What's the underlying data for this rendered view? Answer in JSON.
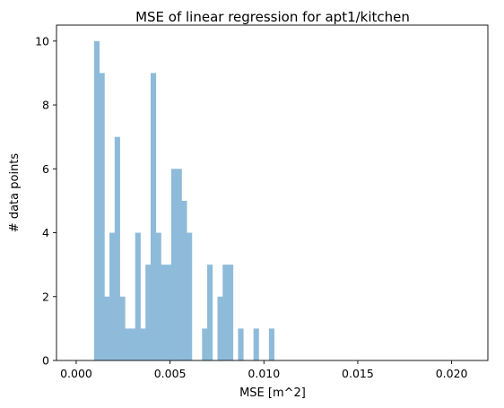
{
  "chart_data": {
    "type": "histogram",
    "title": "MSE of linear regression for apt1/kitchen",
    "xlabel": "MSE [m^2]",
    "ylabel": "# data points",
    "xlim": [
      -0.00105,
      0.02193
    ],
    "ylim": [
      0,
      10.5
    ],
    "x_ticks": [
      "0.000",
      "0.005",
      "0.010",
      "0.015",
      "0.020"
    ],
    "x_tick_values": [
      0,
      0.005,
      0.01,
      0.015,
      0.02
    ],
    "y_ticks": [
      "0",
      "2",
      "4",
      "6",
      "8",
      "10"
    ],
    "y_tick_values": [
      0,
      2,
      4,
      6,
      8,
      10
    ],
    "grid": false,
    "bar_color": "#8fbbda",
    "bin_start": 0.00095,
    "bin_width": 0.000274,
    "counts": [
      10,
      9,
      2,
      4,
      7,
      2,
      1,
      1,
      4,
      1,
      3,
      9,
      4,
      3,
      3,
      6,
      6,
      5,
      4,
      0,
      0,
      1,
      3,
      0,
      2,
      3,
      3,
      0,
      1,
      0,
      0,
      1,
      0,
      0,
      1
    ]
  }
}
